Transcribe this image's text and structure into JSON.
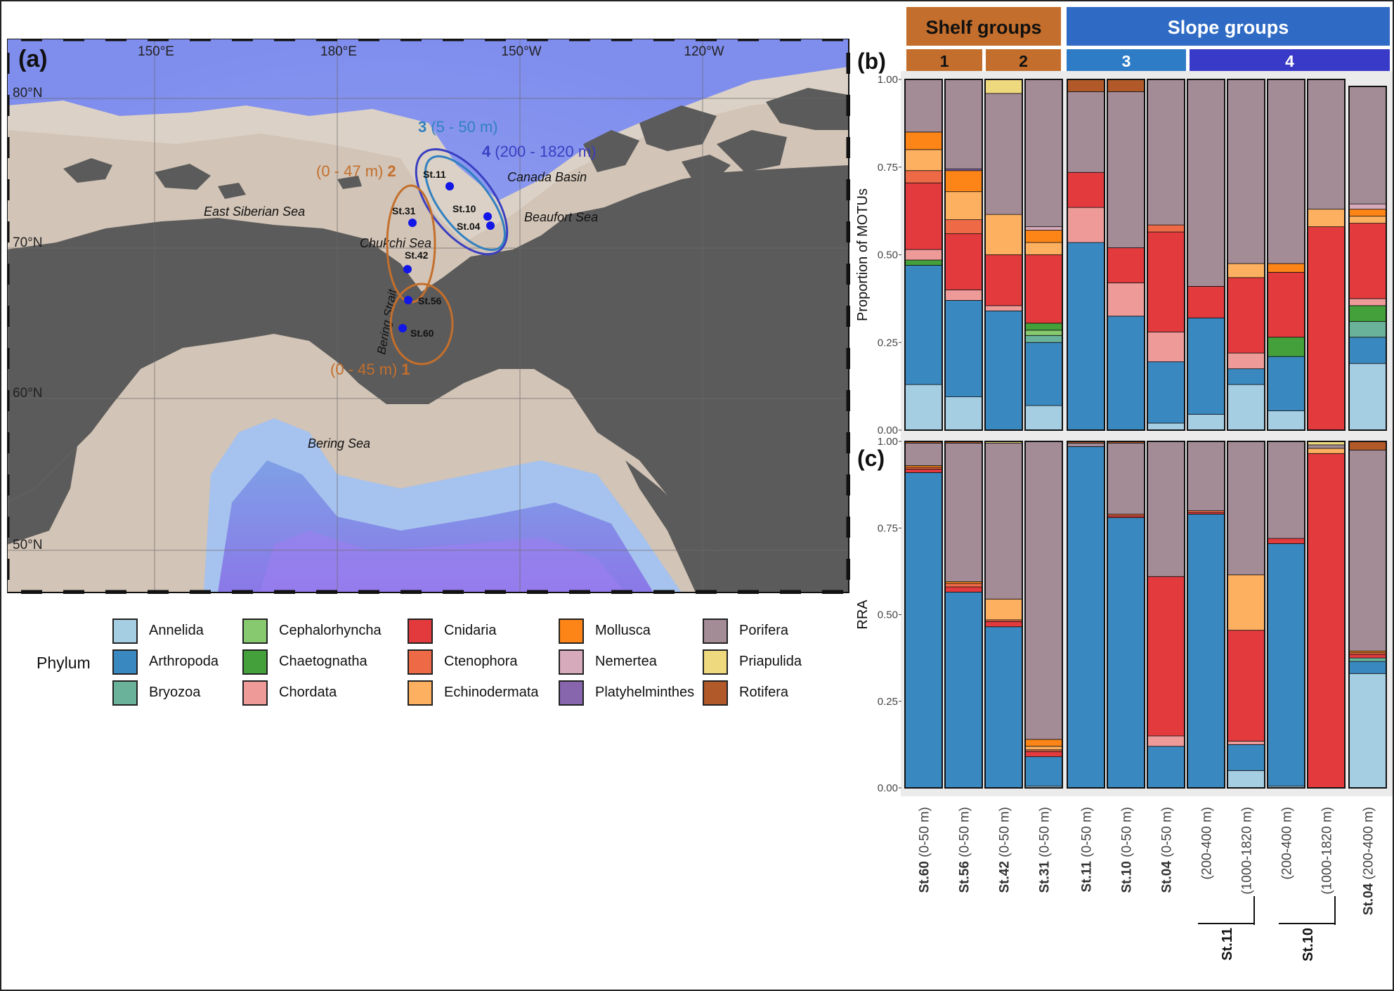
{
  "panels": {
    "a": "(a)",
    "b": "(b)",
    "c": "(c)"
  },
  "map": {
    "lon_labels": [
      "150°E",
      "180°E",
      "150°W",
      "120°W"
    ],
    "lat_labels": [
      "80°N",
      "70°N",
      "60°N",
      "50°N"
    ],
    "seas": [
      "East Siberian Sea",
      "Chukchi Sea",
      "Bering Strait",
      "Bering Sea",
      "Canada Basin",
      "Beaufort Sea"
    ],
    "stations": [
      "St.11",
      "St.31",
      "St.10",
      "St.04",
      "St.42",
      "St.56",
      "St.60"
    ],
    "groups": [
      {
        "num": "1",
        "range": "(0 - 45 m)",
        "color": "#C46F2C"
      },
      {
        "num": "2",
        "range": "(0 - 47 m)",
        "color": "#C46F2C"
      },
      {
        "num": "3",
        "range": "(5 - 50 m)",
        "color": "#3281C0"
      },
      {
        "num": "4",
        "range": "(200 - 1820 m)",
        "color": "#3A3FC2"
      }
    ]
  },
  "legend": {
    "title": "Phylum",
    "items": [
      {
        "name": "Annelida",
        "color": "#A6CEE3"
      },
      {
        "name": "Arthropoda",
        "color": "#3A88C0"
      },
      {
        "name": "Bryozoa",
        "color": "#6BB29A"
      },
      {
        "name": "Cephalorhyncha",
        "color": "#86C96E"
      },
      {
        "name": "Chaetognatha",
        "color": "#43A03A"
      },
      {
        "name": "Chordata",
        "color": "#EE9A99"
      },
      {
        "name": "Cnidaria",
        "color": "#E33A3D"
      },
      {
        "name": "Ctenophora",
        "color": "#EE6A47"
      },
      {
        "name": "Echinodermata",
        "color": "#FDB05F"
      },
      {
        "name": "Mollusca",
        "color": "#FD8416"
      },
      {
        "name": "Nemertea",
        "color": "#D7AABB"
      },
      {
        "name": "Platyhelminthes",
        "color": "#8766AE"
      },
      {
        "name": "Porifera",
        "color": "#A48C97"
      },
      {
        "name": "Priapulida",
        "color": "#EFD97F"
      },
      {
        "name": "Rotifera",
        "color": "#B15928"
      }
    ]
  },
  "groups_header": {
    "shelf": {
      "label": "Shelf  groups",
      "color": "#C36E2C",
      "sub": [
        "1",
        "2"
      ]
    },
    "slope": {
      "label": "Slope groups",
      "color": "#2F6BC4",
      "sub": [
        "3",
        "4"
      ],
      "sub_colors": [
        "#2E7CC6",
        "#3A3AC9"
      ]
    }
  },
  "chart_data": [
    {
      "type": "bar",
      "stacked": true,
      "panel": "(b)",
      "ylabel": "Proportion of MOTUs",
      "ylim": [
        0,
        1
      ],
      "yticks": [
        "0.00",
        "0.25",
        "0.50",
        "0.75",
        "1.00"
      ],
      "categories": [
        "St.60 (0-50 m)",
        "St.56 (0-50 m)",
        "St.42 (0-50 m)",
        "St.31 (0-50 m)",
        "St.11 (0-50 m)",
        "St.10 (0-50 m)",
        "St.04 (0-50 m)",
        "St.11 (200-400 m)",
        "St.11 (1000-1820 m)",
        "St.10 (200-400 m)",
        "St.10 (1000-1820 m)",
        "St.04 (200-400 m)"
      ],
      "series": [
        {
          "name": "Annelida",
          "values": [
            0.13,
            0.095,
            0,
            0.07,
            0,
            0,
            0.02,
            0.045,
            0.13,
            0.055,
            0,
            0.19
          ]
        },
        {
          "name": "Arthropoda",
          "values": [
            0.34,
            0.275,
            0.34,
            0.18,
            0.535,
            0.325,
            0.175,
            0.275,
            0.045,
            0.155,
            0,
            0.075
          ]
        },
        {
          "name": "Bryozoa",
          "values": [
            0,
            0,
            0,
            0.02,
            0,
            0,
            0,
            0,
            0,
            0,
            0,
            0.045
          ]
        },
        {
          "name": "Cephalorhyncha",
          "values": [
            0,
            0,
            0,
            0.015,
            0,
            0,
            0,
            0,
            0,
            0,
            0,
            0
          ]
        },
        {
          "name": "Chaetognatha",
          "values": [
            0.015,
            0,
            0,
            0.02,
            0,
            0,
            0,
            0,
            0,
            0.055,
            0,
            0.045
          ]
        },
        {
          "name": "Chordata",
          "values": [
            0.03,
            0.03,
            0.015,
            0,
            0.1,
            0.095,
            0.085,
            0,
            0.045,
            0,
            0,
            0.02
          ]
        },
        {
          "name": "Cnidaria",
          "values": [
            0.19,
            0.16,
            0.145,
            0.195,
            0.1,
            0.1,
            0.285,
            0.09,
            0.215,
            0.185,
            0.58,
            0.215
          ]
        },
        {
          "name": "Ctenophora",
          "values": [
            0.035,
            0.04,
            0,
            0,
            0,
            0,
            0.02,
            0,
            0,
            0,
            0,
            0
          ]
        },
        {
          "name": "Echinodermata",
          "values": [
            0.06,
            0.08,
            0.115,
            0.035,
            0,
            0,
            0,
            0,
            0.04,
            0,
            0.05,
            0.02
          ]
        },
        {
          "name": "Mollusca",
          "values": [
            0.05,
            0.06,
            0,
            0.035,
            0,
            0,
            0,
            0,
            0,
            0.025,
            0,
            0.02
          ]
        },
        {
          "name": "Nemertea",
          "values": [
            0,
            0,
            0,
            0.01,
            0,
            0,
            0,
            0,
            0,
            0,
            0,
            0.015
          ]
        },
        {
          "name": "Platyhelminthes",
          "values": [
            0,
            0.005,
            0,
            0,
            0,
            0,
            0,
            0,
            0,
            0,
            0,
            0
          ]
        },
        {
          "name": "Porifera",
          "values": [
            0.15,
            0.255,
            0.345,
            0.42,
            0.23,
            0.445,
            0.415,
            0.59,
            0.525,
            0.525,
            0.37,
            0.335
          ]
        },
        {
          "name": "Priapulida",
          "values": [
            0,
            0,
            0.04,
            0,
            0,
            0,
            0,
            0,
            0,
            0,
            0,
            0
          ]
        },
        {
          "name": "Rotifera",
          "values": [
            0,
            0,
            0,
            0,
            0.035,
            0.035,
            0,
            0,
            0,
            0,
            0,
            0
          ]
        }
      ]
    },
    {
      "type": "bar",
      "stacked": true,
      "panel": "(c)",
      "ylabel": "RRA",
      "ylim": [
        0,
        1
      ],
      "yticks": [
        "0.00",
        "0.25",
        "0.50",
        "0.75",
        "1.00"
      ],
      "categories": [
        "St.60 (0-50 m)",
        "St.56 (0-50 m)",
        "St.42 (0-50 m)",
        "St.31 (0-50 m)",
        "St.11 (0-50 m)",
        "St.10 (0-50 m)",
        "St.04 (0-50 m)",
        "St.11 (200-400 m)",
        "St.11 (1000-1820 m)",
        "St.10 (200-400 m)",
        "St.10 (1000-1820 m)",
        "St.04 (200-400 m)"
      ],
      "series": [
        {
          "name": "Annelida",
          "values": [
            0,
            0,
            0,
            0.005,
            0,
            0,
            0,
            0,
            0.05,
            0.005,
            0,
            0.33
          ]
        },
        {
          "name": "Arthropoda",
          "values": [
            0.91,
            0.565,
            0.465,
            0.085,
            0.985,
            0.78,
            0.12,
            0.79,
            0.075,
            0.7,
            0,
            0.035
          ]
        },
        {
          "name": "Bryozoa",
          "values": [
            0,
            0,
            0,
            0,
            0,
            0,
            0,
            0,
            0,
            0,
            0,
            0.01
          ]
        },
        {
          "name": "Cephalorhyncha",
          "values": [
            0,
            0,
            0,
            0,
            0,
            0,
            0,
            0,
            0,
            0,
            0,
            0
          ]
        },
        {
          "name": "Chaetognatha",
          "values": [
            0,
            0,
            0,
            0,
            0,
            0,
            0,
            0,
            0,
            0,
            0,
            0
          ]
        },
        {
          "name": "Chordata",
          "values": [
            0,
            0,
            0,
            0,
            0,
            0,
            0.03,
            0,
            0.01,
            0,
            0,
            0
          ]
        },
        {
          "name": "Cnidaria",
          "values": [
            0.01,
            0.015,
            0.015,
            0.015,
            0,
            0.005,
            0.46,
            0.005,
            0.32,
            0.015,
            0.965,
            0.01
          ]
        },
        {
          "name": "Ctenophora",
          "values": [
            0.005,
            0.01,
            0.005,
            0.005,
            0,
            0.005,
            0,
            0.005,
            0,
            0,
            0,
            0.005
          ]
        },
        {
          "name": "Echinodermata",
          "values": [
            0,
            0,
            0.06,
            0.01,
            0,
            0,
            0,
            0,
            0.16,
            0,
            0.015,
            0
          ]
        },
        {
          "name": "Mollusca",
          "values": [
            0.005,
            0.005,
            0,
            0.02,
            0,
            0,
            0,
            0,
            0,
            0,
            0,
            0.005
          ]
        },
        {
          "name": "Nemertea",
          "values": [
            0,
            0,
            0,
            0,
            0,
            0,
            0,
            0,
            0,
            0,
            0,
            0
          ]
        },
        {
          "name": "Platyhelminthes",
          "values": [
            0,
            0,
            0,
            0,
            0,
            0,
            0,
            0,
            0,
            0,
            0,
            0
          ]
        },
        {
          "name": "Porifera",
          "values": [
            0.065,
            0.4,
            0.45,
            0.86,
            0.01,
            0.205,
            0.39,
            0.2,
            0.385,
            0.28,
            0.01,
            0.58
          ]
        },
        {
          "name": "Priapulida",
          "values": [
            0,
            0,
            0.005,
            0,
            0,
            0,
            0,
            0,
            0,
            0,
            0.01,
            0
          ]
        },
        {
          "name": "Rotifera",
          "values": [
            0.005,
            0.005,
            0,
            0,
            0.005,
            0.005,
            0,
            0,
            0,
            0,
            0,
            0.025
          ]
        }
      ]
    }
  ],
  "xaxis": {
    "ticks": [
      {
        "station": "St.60",
        "depth": "(0-50 m)"
      },
      {
        "station": "St.56",
        "depth": "(0-50 m)"
      },
      {
        "station": "St.42",
        "depth": "(0-50 m)"
      },
      {
        "station": "St.31",
        "depth": "(0-50 m)"
      },
      {
        "station": "St.11",
        "depth": "(0-50 m)"
      },
      {
        "station": "St.10",
        "depth": "(0-50 m)"
      },
      {
        "station": "St.04",
        "depth": "(0-50 m)"
      },
      {
        "station": "",
        "depth": "(200-400 m)"
      },
      {
        "station": "",
        "depth": "(1000-1820 m)"
      },
      {
        "station": "",
        "depth": "(200-400 m)"
      },
      {
        "station": "",
        "depth": "(1000-1820 m)"
      },
      {
        "station": "St.04",
        "depth": "(200-400 m)"
      }
    ],
    "bracket_labels": [
      "St.11",
      "St.10"
    ]
  }
}
